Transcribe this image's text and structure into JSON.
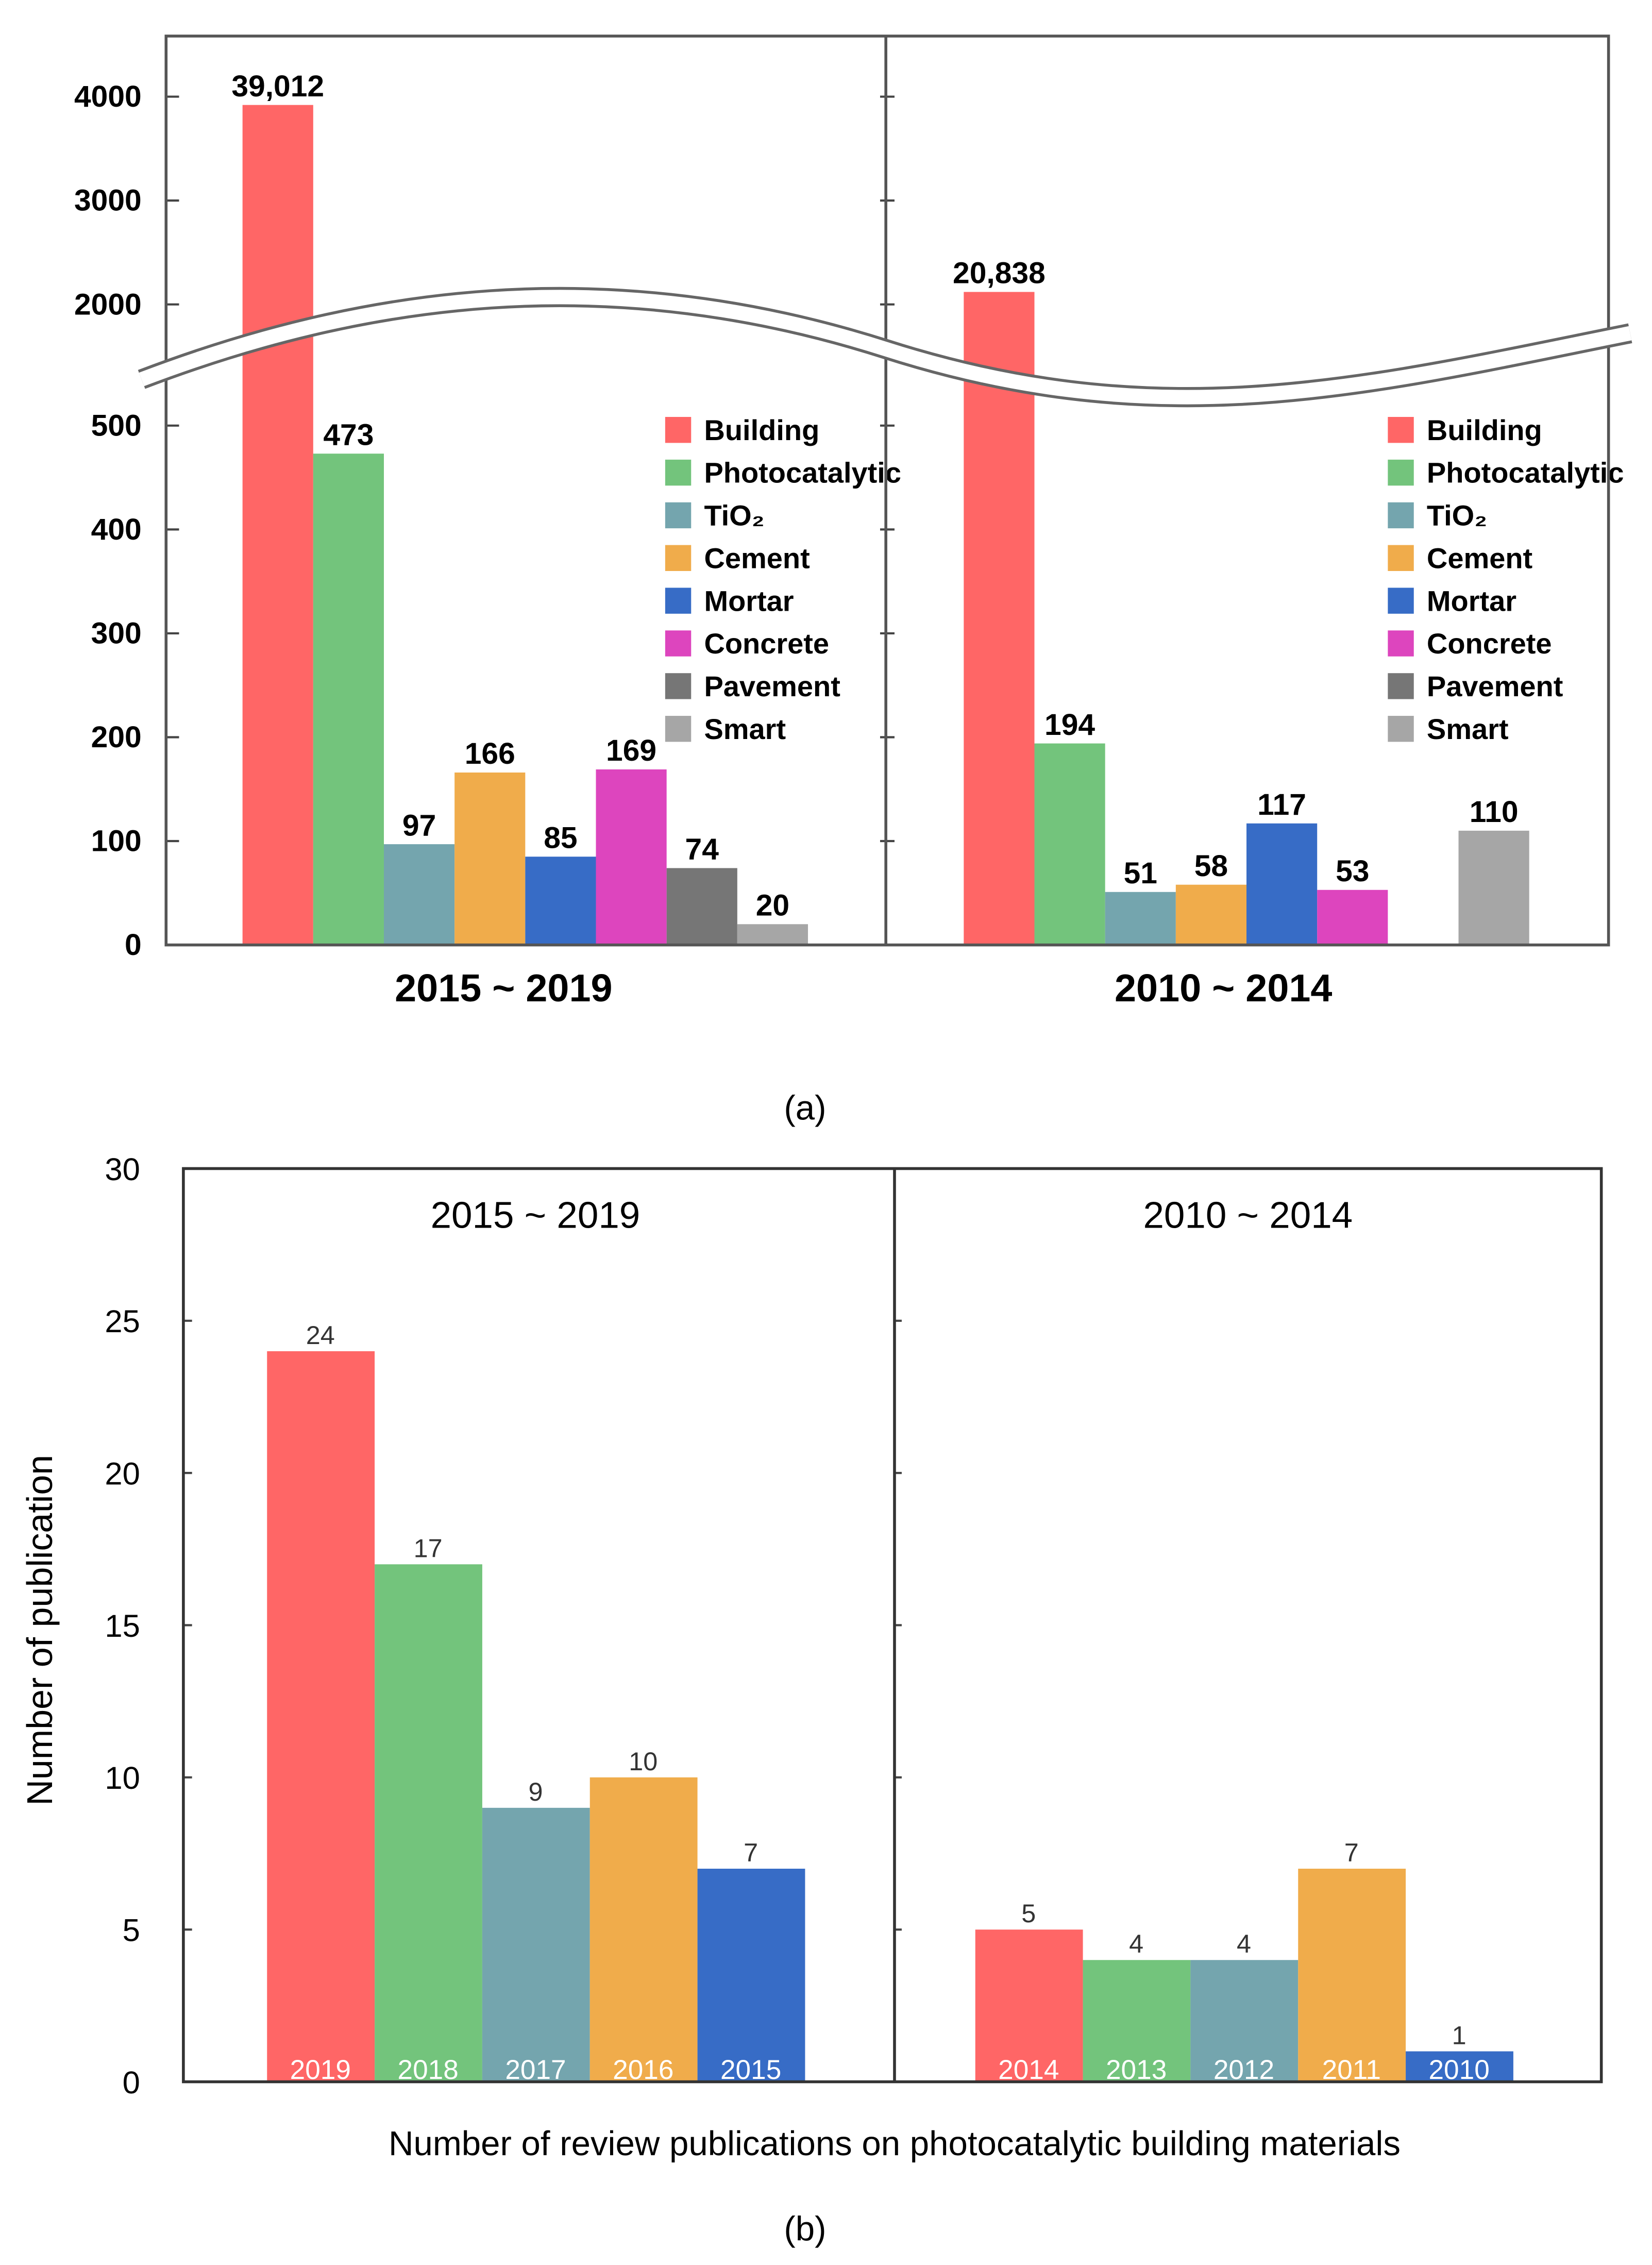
{
  "colors": {
    "Building": "#FF6666",
    "Photocatalytic": "#73C47C",
    "TiO2": "#74A5AE",
    "Cement": "#F0AC4B",
    "Mortar": "#376CC6",
    "Concrete": "#DD45BE",
    "Pavement": "#767676",
    "Smart": "#A6A6A6"
  },
  "chart_data": [
    {
      "type": "bar",
      "panel_label": "(a)",
      "axis_break": {
        "lower_range": [
          0,
          500
        ],
        "upper_range": [
          2000,
          4000
        ]
      },
      "yticks": [
        "0",
        "100",
        "200",
        "300",
        "400",
        "500",
        "2000",
        "3000",
        "4000"
      ],
      "ytick_values": [
        0,
        100,
        200,
        300,
        400,
        500,
        2000,
        3000,
        4000
      ],
      "legend": [
        "Building",
        "Photocatalytic",
        "TiO₂",
        "Cement",
        "Mortar",
        "Concrete",
        "Pavement",
        "Smart"
      ],
      "legend_keys": [
        "Building",
        "Photocatalytic",
        "TiO2",
        "Cement",
        "Mortar",
        "Concrete",
        "Pavement",
        "Smart"
      ],
      "legend_placement": "right of each panel",
      "groups": [
        {
          "name": "2015 ~ 2019",
          "bars": [
            {
              "key": "Building",
              "value": 39012,
              "plotted_value": 3920,
              "label": "39,012"
            },
            {
              "key": "Photocatalytic",
              "value": 473,
              "label": "473"
            },
            {
              "key": "TiO2",
              "value": 97,
              "label": "97"
            },
            {
              "key": "Cement",
              "value": 166,
              "label": "166"
            },
            {
              "key": "Mortar",
              "value": 85,
              "label": "85"
            },
            {
              "key": "Concrete",
              "value": 169,
              "label": "169"
            },
            {
              "key": "Pavement",
              "value": 74,
              "label": "74"
            },
            {
              "key": "Smart",
              "value": 20,
              "label": "20"
            }
          ]
        },
        {
          "name": "2010 ~ 2014",
          "bars": [
            {
              "key": "Building",
              "value": 20838,
              "plotted_value": 2120,
              "label": "20,838"
            },
            {
              "key": "Photocatalytic",
              "value": 194,
              "label": "194"
            },
            {
              "key": "TiO2",
              "value": 51,
              "label": "51"
            },
            {
              "key": "Cement",
              "value": 58,
              "label": "58"
            },
            {
              "key": "Mortar",
              "value": 117,
              "label": "117"
            },
            {
              "key": "Concrete",
              "value": 53,
              "label": "53"
            },
            {
              "key": "Pavement",
              "value": null,
              "label": ""
            },
            {
              "key": "Smart",
              "value": 110,
              "label": "110"
            }
          ]
        }
      ]
    },
    {
      "type": "bar",
      "panel_label": "(b)",
      "ylabel": "Number of publication",
      "xlabel": "Number of review publications on photocatalytic building materials",
      "ylim": [
        0,
        30
      ],
      "yticks": [
        "0",
        "5",
        "10",
        "15",
        "20",
        "25",
        "30"
      ],
      "groups": [
        {
          "name": "2015 ~ 2019",
          "bars": [
            {
              "year": "2019",
              "value": 24,
              "label": "24",
              "key": "Building"
            },
            {
              "year": "2018",
              "value": 17,
              "label": "17",
              "key": "Photocatalytic"
            },
            {
              "year": "2017",
              "value": 9,
              "label": "9",
              "key": "TiO2"
            },
            {
              "year": "2016",
              "value": 10,
              "label": "10",
              "key": "Cement"
            },
            {
              "year": "2015",
              "value": 7,
              "label": "7",
              "key": "Mortar"
            }
          ]
        },
        {
          "name": "2010 ~ 2014",
          "bars": [
            {
              "year": "2014",
              "value": 5,
              "label": "5",
              "key": "Building"
            },
            {
              "year": "2013",
              "value": 4,
              "label": "4",
              "key": "Photocatalytic"
            },
            {
              "year": "2012",
              "value": 4,
              "label": "4",
              "key": "TiO2"
            },
            {
              "year": "2011",
              "value": 7,
              "label": "7",
              "key": "Cement"
            },
            {
              "year": "2010",
              "value": 1,
              "label": "1",
              "key": "Mortar"
            }
          ]
        }
      ]
    }
  ]
}
